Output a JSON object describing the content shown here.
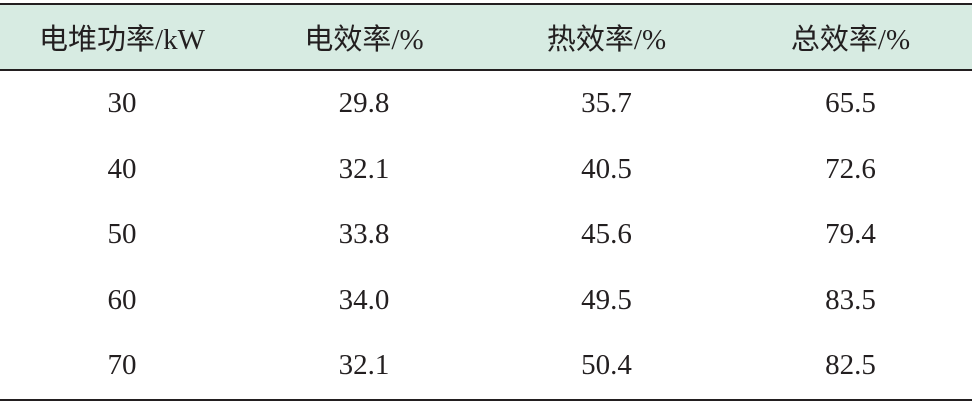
{
  "table": {
    "header": [
      "电堆功率/kW",
      "电效率/%",
      "热效率/%",
      "总效率/%"
    ],
    "rows": [
      [
        "30",
        "29.8",
        "35.7",
        "65.5"
      ],
      [
        "40",
        "32.1",
        "40.5",
        "72.6"
      ],
      [
        "50",
        "33.8",
        "45.6",
        "79.4"
      ],
      [
        "60",
        "34.0",
        "49.5",
        "83.5"
      ],
      [
        "70",
        "32.1",
        "50.4",
        "82.5"
      ]
    ]
  }
}
